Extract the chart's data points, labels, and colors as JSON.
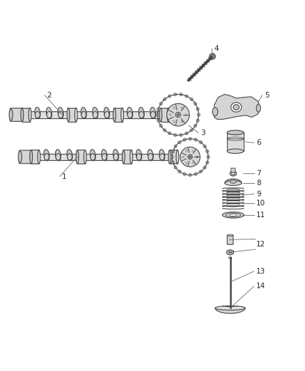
{
  "bg_color": "#ffffff",
  "line_color": "#444444",
  "fill_light": "#e8e8e8",
  "fill_mid": "#d0d0d0",
  "fill_dark": "#b8b8b8",
  "figsize": [
    4.38,
    5.33
  ],
  "dpi": 100,
  "xlim": [
    0,
    10
  ],
  "ylim": [
    -1.5,
    8.5
  ]
}
